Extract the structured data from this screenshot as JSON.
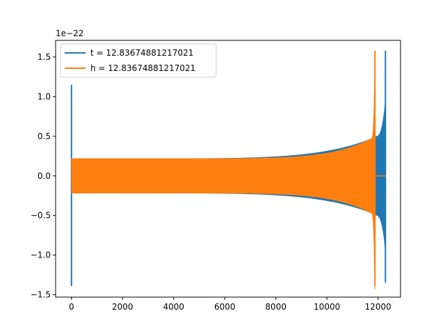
{
  "chart_data": {
    "type": "line",
    "title": "",
    "xlabel": "",
    "ylabel": "",
    "offset_label": "1e−22",
    "xlim": [
      -620,
      12880
    ],
    "ylim": [
      -1.53,
      1.71
    ],
    "xticks": [
      0,
      2000,
      4000,
      6000,
      8000,
      10000,
      12000
    ],
    "yticks": [
      -1.5,
      -1.0,
      -0.5,
      0.0,
      0.5,
      1.0,
      1.5
    ],
    "ytick_labels": [
      "−1.5",
      "−1.0",
      "−0.5",
      "0.0",
      "0.5",
      "1.0",
      "1.5"
    ],
    "grid": false,
    "legend_position": "top-left",
    "series": [
      {
        "name": "t = 12.83674881217021",
        "color": "#1f77b4",
        "spike_start": {
          "x": 0,
          "max": 1.15,
          "min": -1.39
        },
        "x_range": [
          0,
          12290
        ],
        "amplitude_start": 0.22,
        "peak": {
          "x": 12290,
          "max": 1.58,
          "min": -1.35
        },
        "band_after_orange_end": {
          "x": 11900,
          "amplitude": 0.5
        }
      },
      {
        "name": "h = 12.83674881217021",
        "color": "#ff7f0e",
        "x_range": [
          0,
          11900
        ],
        "amplitude_start": 0.22,
        "peak": {
          "x": 11880,
          "max": 1.58,
          "min": -1.39
        },
        "tail": {
          "x_range": [
            11900,
            12290
          ],
          "value": 0.0
        }
      }
    ]
  }
}
